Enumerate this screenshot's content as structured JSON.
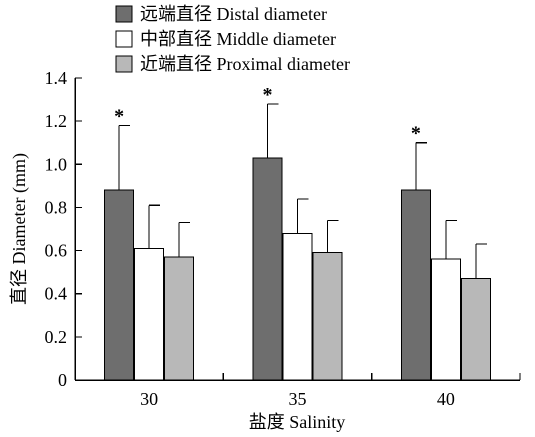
{
  "chart_data": {
    "type": "bar",
    "title": "",
    "xlabel": "盐度 Salinity",
    "ylabel": "直径 Diameter (mm)",
    "categories": [
      "30",
      "35",
      "40"
    ],
    "ylim": [
      0,
      1.4
    ],
    "yticks": [
      "0",
      "0.2",
      "0.4",
      "0.6",
      "0.8",
      "1.0",
      "1.2",
      "1.4"
    ],
    "grid": false,
    "legend_position": "top-left",
    "series": [
      {
        "name": "远端直径 Distal diameter",
        "color": "#6e6e6e",
        "values": [
          0.88,
          1.03,
          0.88
        ],
        "errors": [
          0.3,
          0.25,
          0.22
        ],
        "significance": [
          "*",
          "*",
          "*"
        ]
      },
      {
        "name": "中部直径 Middle diameter",
        "color": "#ffffff",
        "values": [
          0.61,
          0.68,
          0.56
        ],
        "errors": [
          0.2,
          0.16,
          0.18
        ],
        "significance": [
          "",
          "",
          ""
        ]
      },
      {
        "name": "近端直径 Proximal diameter",
        "color": "#b8b8b8",
        "values": [
          0.57,
          0.59,
          0.47
        ],
        "errors": [
          0.16,
          0.15,
          0.16
        ],
        "significance": [
          "",
          "",
          ""
        ]
      }
    ]
  }
}
